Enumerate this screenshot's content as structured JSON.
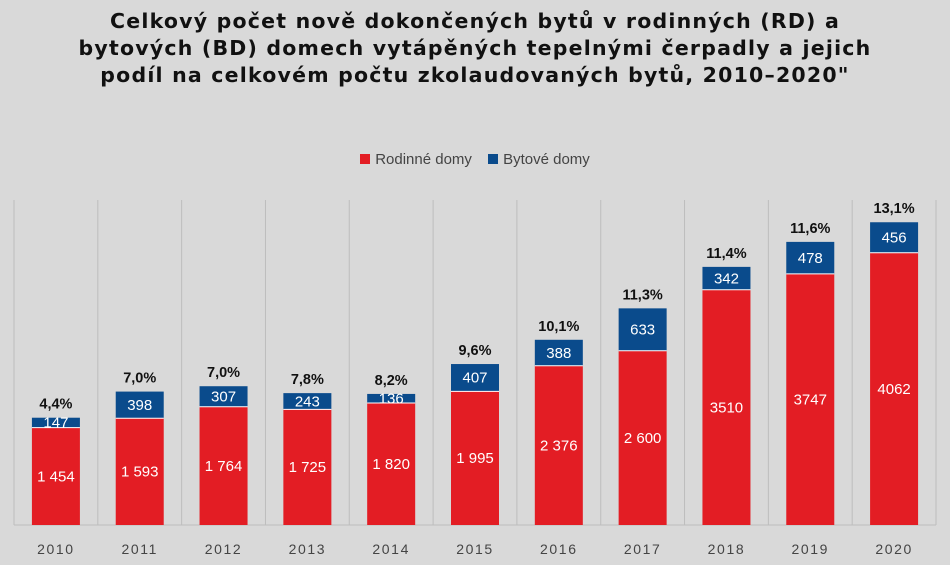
{
  "chart_data": {
    "type": "bar",
    "stacked": true,
    "title": "Celkový počet nově dokončených bytů v rodinných (RD) a bytových (BD) domech vytápěných tepelnými čerpadly a jejich podíl na celkovém počtu zkolaudovaných bytů, 2010–2020\"",
    "categories": [
      "2010",
      "2011",
      "2012",
      "2013",
      "2014",
      "2015",
      "2016",
      "2017",
      "2018",
      "2019",
      "2020"
    ],
    "series": [
      {
        "name": "Rodinné domy",
        "color": "#e31d24",
        "values": [
          1454,
          1593,
          1764,
          1725,
          1820,
          1995,
          2376,
          2600,
          3510,
          3747,
          4062
        ],
        "labels": [
          "1 454",
          "1 593",
          "1 764",
          "1 725",
          "1 820",
          "1 995",
          "2 376",
          "2 600",
          "3510",
          "3747",
          "4062"
        ]
      },
      {
        "name": "Bytové domy",
        "color": "#0a4b8c",
        "values": [
          147,
          398,
          307,
          243,
          136,
          407,
          388,
          633,
          342,
          478,
          456
        ],
        "labels": [
          "147",
          "398",
          "307",
          "243",
          "136",
          "407",
          "388",
          "633",
          "342",
          "478",
          "456"
        ]
      }
    ],
    "share_labels": [
      "4,4%",
      "7,0%",
      "7,0%",
      "7,8%",
      "8,2%",
      "9,6%",
      "10,1%",
      "11,3%",
      "11,4%",
      "11,6%",
      "13,1%"
    ],
    "ylim": [
      0,
      4850
    ],
    "legend_position": "top-center",
    "grid": "vertical separators"
  }
}
